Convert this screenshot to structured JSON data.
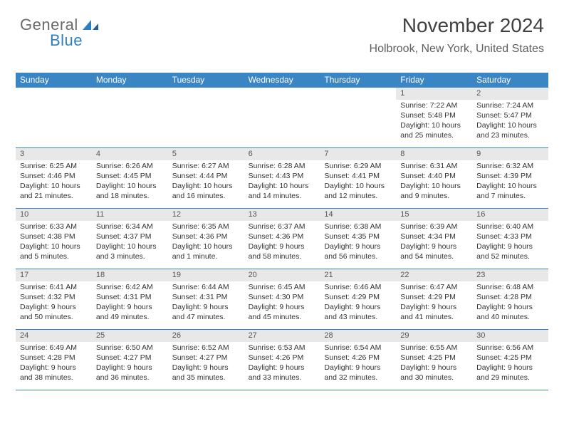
{
  "logo": {
    "gray": "General",
    "blue": "Blue"
  },
  "title": "November 2024",
  "location": "Holbrook, New York, United States",
  "colors": {
    "header_bar": "#3a86c5",
    "daynum_bg": "#e8e8e8",
    "text": "#333333",
    "title_text": "#404040",
    "location_text": "#606060",
    "logo_gray": "#6a6a6a",
    "logo_blue": "#2f7fbf"
  },
  "day_names": [
    "Sunday",
    "Monday",
    "Tuesday",
    "Wednesday",
    "Thursday",
    "Friday",
    "Saturday"
  ],
  "weeks": [
    [
      null,
      null,
      null,
      null,
      null,
      {
        "n": "1",
        "sr": "7:22 AM",
        "ss": "5:48 PM",
        "d1": "10 hours",
        "d2": "and 25 minutes."
      },
      {
        "n": "2",
        "sr": "7:24 AM",
        "ss": "5:47 PM",
        "d1": "10 hours",
        "d2": "and 23 minutes."
      }
    ],
    [
      {
        "n": "3",
        "sr": "6:25 AM",
        "ss": "4:46 PM",
        "d1": "10 hours",
        "d2": "and 21 minutes."
      },
      {
        "n": "4",
        "sr": "6:26 AM",
        "ss": "4:45 PM",
        "d1": "10 hours",
        "d2": "and 18 minutes."
      },
      {
        "n": "5",
        "sr": "6:27 AM",
        "ss": "4:44 PM",
        "d1": "10 hours",
        "d2": "and 16 minutes."
      },
      {
        "n": "6",
        "sr": "6:28 AM",
        "ss": "4:43 PM",
        "d1": "10 hours",
        "d2": "and 14 minutes."
      },
      {
        "n": "7",
        "sr": "6:29 AM",
        "ss": "4:41 PM",
        "d1": "10 hours",
        "d2": "and 12 minutes."
      },
      {
        "n": "8",
        "sr": "6:31 AM",
        "ss": "4:40 PM",
        "d1": "10 hours",
        "d2": "and 9 minutes."
      },
      {
        "n": "9",
        "sr": "6:32 AM",
        "ss": "4:39 PM",
        "d1": "10 hours",
        "d2": "and 7 minutes."
      }
    ],
    [
      {
        "n": "10",
        "sr": "6:33 AM",
        "ss": "4:38 PM",
        "d1": "10 hours",
        "d2": "and 5 minutes."
      },
      {
        "n": "11",
        "sr": "6:34 AM",
        "ss": "4:37 PM",
        "d1": "10 hours",
        "d2": "and 3 minutes."
      },
      {
        "n": "12",
        "sr": "6:35 AM",
        "ss": "4:36 PM",
        "d1": "10 hours",
        "d2": "and 1 minute."
      },
      {
        "n": "13",
        "sr": "6:37 AM",
        "ss": "4:36 PM",
        "d1": "9 hours",
        "d2": "and 58 minutes."
      },
      {
        "n": "14",
        "sr": "6:38 AM",
        "ss": "4:35 PM",
        "d1": "9 hours",
        "d2": "and 56 minutes."
      },
      {
        "n": "15",
        "sr": "6:39 AM",
        "ss": "4:34 PM",
        "d1": "9 hours",
        "d2": "and 54 minutes."
      },
      {
        "n": "16",
        "sr": "6:40 AM",
        "ss": "4:33 PM",
        "d1": "9 hours",
        "d2": "and 52 minutes."
      }
    ],
    [
      {
        "n": "17",
        "sr": "6:41 AM",
        "ss": "4:32 PM",
        "d1": "9 hours",
        "d2": "and 50 minutes."
      },
      {
        "n": "18",
        "sr": "6:42 AM",
        "ss": "4:31 PM",
        "d1": "9 hours",
        "d2": "and 49 minutes."
      },
      {
        "n": "19",
        "sr": "6:44 AM",
        "ss": "4:31 PM",
        "d1": "9 hours",
        "d2": "and 47 minutes."
      },
      {
        "n": "20",
        "sr": "6:45 AM",
        "ss": "4:30 PM",
        "d1": "9 hours",
        "d2": "and 45 minutes."
      },
      {
        "n": "21",
        "sr": "6:46 AM",
        "ss": "4:29 PM",
        "d1": "9 hours",
        "d2": "and 43 minutes."
      },
      {
        "n": "22",
        "sr": "6:47 AM",
        "ss": "4:29 PM",
        "d1": "9 hours",
        "d2": "and 41 minutes."
      },
      {
        "n": "23",
        "sr": "6:48 AM",
        "ss": "4:28 PM",
        "d1": "9 hours",
        "d2": "and 40 minutes."
      }
    ],
    [
      {
        "n": "24",
        "sr": "6:49 AM",
        "ss": "4:28 PM",
        "d1": "9 hours",
        "d2": "and 38 minutes."
      },
      {
        "n": "25",
        "sr": "6:50 AM",
        "ss": "4:27 PM",
        "d1": "9 hours",
        "d2": "and 36 minutes."
      },
      {
        "n": "26",
        "sr": "6:52 AM",
        "ss": "4:27 PM",
        "d1": "9 hours",
        "d2": "and 35 minutes."
      },
      {
        "n": "27",
        "sr": "6:53 AM",
        "ss": "4:26 PM",
        "d1": "9 hours",
        "d2": "and 33 minutes."
      },
      {
        "n": "28",
        "sr": "6:54 AM",
        "ss": "4:26 PM",
        "d1": "9 hours",
        "d2": "and 32 minutes."
      },
      {
        "n": "29",
        "sr": "6:55 AM",
        "ss": "4:25 PM",
        "d1": "9 hours",
        "d2": "and 30 minutes."
      },
      {
        "n": "30",
        "sr": "6:56 AM",
        "ss": "4:25 PM",
        "d1": "9 hours",
        "d2": "and 29 minutes."
      }
    ]
  ]
}
